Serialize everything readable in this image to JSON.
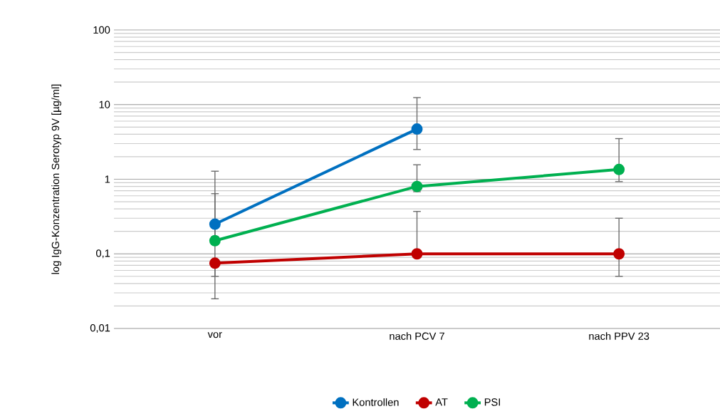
{
  "chart_data": {
    "type": "line",
    "ylabel": "log IgG-Konzentration Serotyp 9V [µg/ml]",
    "categories": [
      "vor",
      "nach PCV 7",
      "nach PPV 23"
    ],
    "series": [
      {
        "name": "Kontrollen",
        "color": "#0070c0",
        "values": [
          0.25,
          4.7,
          null
        ],
        "errors": [
          [
            0.17,
            1.28
          ],
          [
            2.5,
            12.4
          ],
          null
        ]
      },
      {
        "name": "AT",
        "color": "#c00000",
        "values": [
          0.075,
          0.1,
          0.1
        ],
        "errors": [
          [
            0.025,
            0.075
          ],
          [
            0.1,
            0.37
          ],
          [
            0.05,
            0.3
          ]
        ]
      },
      {
        "name": "PSI",
        "color": "#00b050",
        "values": [
          0.15,
          0.8,
          1.35
        ],
        "errors": [
          [
            0.05,
            0.64
          ],
          [
            0.68,
            1.56
          ],
          [
            0.93,
            3.5
          ]
        ]
      }
    ],
    "log": "y",
    "ylim": [
      0.01,
      100
    ],
    "yticks": [
      {
        "value": 0.01,
        "label": "0,01"
      },
      {
        "value": 0.1,
        "label": "0,1"
      },
      1,
      10,
      100
    ],
    "grid": "y",
    "legend": "bottom",
    "marker": "circle",
    "line_style": "solid"
  }
}
